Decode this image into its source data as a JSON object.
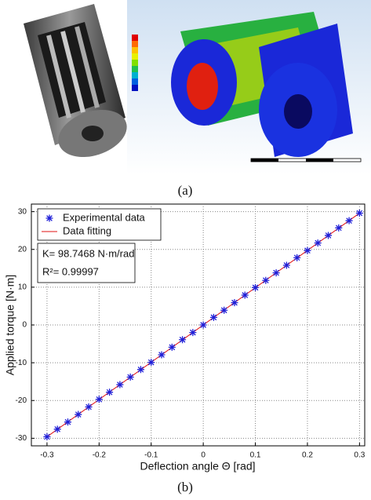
{
  "captions": {
    "a": "(a)",
    "b": "(b)"
  },
  "chart_data": {
    "type": "scatter",
    "xlabel": "Deflection angle Θ [rad]",
    "ylabel": "Applied torque [N·m]",
    "annotations": [
      "K= 98.7468 N·m/rad",
      "R²= 0.99997"
    ],
    "xlim": [
      -0.33,
      0.31
    ],
    "xticks": [
      -0.3,
      -0.2,
      -0.1,
      0,
      0.1,
      0.2,
      0.3
    ],
    "ylim": [
      -32,
      32
    ],
    "yticks": [
      -30,
      -20,
      -10,
      0,
      10,
      20,
      30
    ],
    "grid": true,
    "legend": "upper left",
    "series": [
      {
        "name": "Experimental data",
        "color": "#2020d8",
        "marker": "asterisk",
        "x": [
          -0.3,
          -0.28,
          -0.26,
          -0.24,
          -0.22,
          -0.2,
          -0.18,
          -0.16,
          -0.14,
          -0.12,
          -0.1,
          -0.08,
          -0.06,
          -0.04,
          -0.02,
          0,
          0.02,
          0.04,
          0.06,
          0.08,
          0.1,
          0.12,
          0.14,
          0.16,
          0.18,
          0.2,
          0.22,
          0.24,
          0.26,
          0.28,
          0.3
        ],
        "values": [
          -29.6,
          -27.6,
          -25.7,
          -23.7,
          -21.7,
          -19.7,
          -17.8,
          -15.8,
          -13.8,
          -11.8,
          -9.9,
          -7.9,
          -5.9,
          -3.9,
          -2.0,
          0,
          2.0,
          3.9,
          5.9,
          7.9,
          9.9,
          11.8,
          13.8,
          15.8,
          17.8,
          19.7,
          21.7,
          23.7,
          25.7,
          27.6,
          29.6
        ]
      },
      {
        "name": "Data fitting",
        "color": "#e01010",
        "marker": "none",
        "x": [
          -0.3,
          0.3
        ],
        "values": [
          -29.6,
          29.6
        ]
      }
    ]
  }
}
